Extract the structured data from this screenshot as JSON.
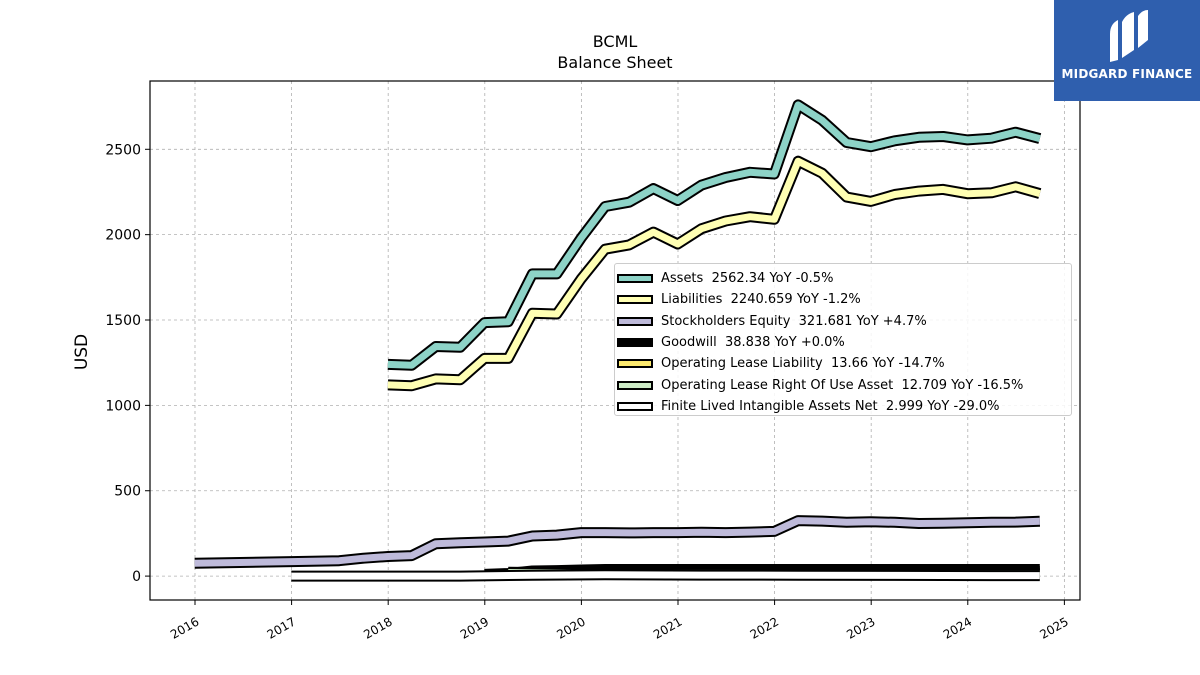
{
  "chart_data": {
    "type": "line",
    "title": "BCML",
    "subtitle": "Balance  Sheet",
    "xlabel": "",
    "ylabel": "USD",
    "x_tick_labels": [
      "2016",
      "2017",
      "2018",
      "2019",
      "2020",
      "2021",
      "2022",
      "2023",
      "2024",
      "2025"
    ],
    "y_tick_labels": [
      "0",
      "500",
      "1000",
      "1500",
      "2000",
      "2500"
    ],
    "xlim": [
      "2015-07-15",
      "2025-03-01"
    ],
    "ylim": [
      -140,
      2900
    ],
    "grid": true,
    "legend_position": "center-right",
    "series": [
      {
        "name": "Assets",
        "legend_label": "Assets  2562.34 YoY -0.5%",
        "color": "#8dd3c7",
        "points": [
          [
            "2017-12-31",
            1240
          ],
          [
            "2018-03-31",
            1235
          ],
          [
            "2018-06-30",
            1345
          ],
          [
            "2018-09-30",
            1340
          ],
          [
            "2018-12-31",
            1485
          ],
          [
            "2019-03-31",
            1490
          ],
          [
            "2019-06-30",
            1770
          ],
          [
            "2019-09-30",
            1770
          ],
          [
            "2019-12-31",
            1980
          ],
          [
            "2020-03-31",
            2165
          ],
          [
            "2020-06-30",
            2190
          ],
          [
            "2020-09-30",
            2270
          ],
          [
            "2020-12-31",
            2200
          ],
          [
            "2021-03-31",
            2290
          ],
          [
            "2021-06-30",
            2335
          ],
          [
            "2021-09-30",
            2365
          ],
          [
            "2021-12-31",
            2355
          ],
          [
            "2022-03-31",
            2760
          ],
          [
            "2022-06-30",
            2670
          ],
          [
            "2022-09-30",
            2540
          ],
          [
            "2022-12-31",
            2515
          ],
          [
            "2023-03-31",
            2550
          ],
          [
            "2023-06-30",
            2570
          ],
          [
            "2023-09-30",
            2575
          ],
          [
            "2023-12-31",
            2555
          ],
          [
            "2024-03-31",
            2565
          ],
          [
            "2024-06-30",
            2600
          ],
          [
            "2024-09-30",
            2562.34
          ]
        ]
      },
      {
        "name": "Liabilities",
        "legend_label": "Liabilities  2240.659 YoY -1.2%",
        "color": "#ffffb3",
        "points": [
          [
            "2017-12-31",
            1120
          ],
          [
            "2018-03-31",
            1115
          ],
          [
            "2018-06-30",
            1155
          ],
          [
            "2018-09-30",
            1150
          ],
          [
            "2018-12-31",
            1275
          ],
          [
            "2019-03-31",
            1275
          ],
          [
            "2019-06-30",
            1540
          ],
          [
            "2019-09-30",
            1535
          ],
          [
            "2019-12-31",
            1740
          ],
          [
            "2020-03-31",
            1915
          ],
          [
            "2020-06-30",
            1940
          ],
          [
            "2020-09-30",
            2015
          ],
          [
            "2020-12-31",
            1945
          ],
          [
            "2021-03-31",
            2035
          ],
          [
            "2021-06-30",
            2080
          ],
          [
            "2021-09-30",
            2105
          ],
          [
            "2021-12-31",
            2090
          ],
          [
            "2022-03-31",
            2430
          ],
          [
            "2022-06-30",
            2360
          ],
          [
            "2022-09-30",
            2220
          ],
          [
            "2022-12-31",
            2195
          ],
          [
            "2023-03-31",
            2235
          ],
          [
            "2023-06-30",
            2255
          ],
          [
            "2023-09-30",
            2265
          ],
          [
            "2023-12-31",
            2240
          ],
          [
            "2024-03-31",
            2245
          ],
          [
            "2024-06-30",
            2280
          ],
          [
            "2024-09-30",
            2240.659
          ]
        ]
      },
      {
        "name": "Stockholders Equity",
        "legend_label": "Stockholders Equity  321.681 YoY +4.7%",
        "color": "#bebada",
        "points": [
          [
            "2015-12-31",
            75
          ],
          [
            "2016-12-31",
            85
          ],
          [
            "2017-06-30",
            90
          ],
          [
            "2017-09-30",
            105
          ],
          [
            "2017-12-31",
            115
          ],
          [
            "2018-03-31",
            120
          ],
          [
            "2018-06-30",
            190
          ],
          [
            "2018-09-30",
            195
          ],
          [
            "2018-12-31",
            200
          ],
          [
            "2019-03-31",
            205
          ],
          [
            "2019-06-30",
            235
          ],
          [
            "2019-09-30",
            240
          ],
          [
            "2019-12-31",
            255
          ],
          [
            "2020-03-31",
            255
          ],
          [
            "2020-06-30",
            253
          ],
          [
            "2020-09-30",
            255
          ],
          [
            "2020-12-31",
            255
          ],
          [
            "2021-03-31",
            257
          ],
          [
            "2021-06-30",
            255
          ],
          [
            "2021-09-30",
            258
          ],
          [
            "2021-12-31",
            262
          ],
          [
            "2022-03-31",
            325
          ],
          [
            "2022-06-30",
            322
          ],
          [
            "2022-09-30",
            315
          ],
          [
            "2022-12-31",
            318
          ],
          [
            "2023-03-31",
            315
          ],
          [
            "2023-06-30",
            308
          ],
          [
            "2023-09-30",
            310
          ],
          [
            "2023-12-31",
            313
          ],
          [
            "2024-03-31",
            315
          ],
          [
            "2024-06-30",
            316
          ],
          [
            "2024-09-30",
            321.681
          ]
        ]
      },
      {
        "name": "Goodwill",
        "legend_label": "Goodwill  38.838 YoY +0.0%",
        "color": "#000000",
        "points": [
          [
            "2018-12-31",
            10
          ],
          [
            "2019-03-31",
            15
          ],
          [
            "2019-06-30",
            30
          ],
          [
            "2019-09-30",
            32
          ],
          [
            "2019-12-31",
            36
          ],
          [
            "2020-03-31",
            38.838
          ],
          [
            "2021-03-31",
            38.838
          ],
          [
            "2022-03-31",
            38.838
          ],
          [
            "2023-03-31",
            38.838
          ],
          [
            "2024-03-31",
            38.838
          ],
          [
            "2024-09-30",
            38.838
          ]
        ]
      },
      {
        "name": "Operating Lease Liability",
        "legend_label": "Operating Lease Liability  13.66 YoY -14.7%",
        "color": "#fdea6f",
        "points": [
          [
            "2019-03-31",
            22
          ],
          [
            "2019-09-30",
            20
          ],
          [
            "2020-03-31",
            18
          ],
          [
            "2021-03-31",
            17
          ],
          [
            "2022-03-31",
            16
          ],
          [
            "2023-03-31",
            15
          ],
          [
            "2024-03-31",
            14
          ],
          [
            "2024-09-30",
            13.66
          ]
        ]
      },
      {
        "name": "Operating Lease Right Of Use Asset",
        "legend_label": "Operating Lease Right Of Use Asset  12.709 YoY -16.5%",
        "color": "#ccebc5",
        "points": [
          [
            "2019-03-31",
            21
          ],
          [
            "2019-09-30",
            19
          ],
          [
            "2020-03-31",
            17
          ],
          [
            "2021-03-31",
            16
          ],
          [
            "2022-03-31",
            15
          ],
          [
            "2023-03-31",
            14
          ],
          [
            "2024-03-31",
            13
          ],
          [
            "2024-09-30",
            12.709
          ]
        ]
      },
      {
        "name": "Finite Lived Intangible Assets Net",
        "legend_label": "Finite Lived Intangible Assets Net  2.999 YoY -29.0%",
        "color": "#ffffff",
        "points": [
          [
            "2016-12-31",
            0
          ],
          [
            "2018-06-30",
            0
          ],
          [
            "2018-09-30",
            0
          ],
          [
            "2019-06-30",
            5
          ],
          [
            "2020-03-31",
            8
          ],
          [
            "2021-03-31",
            6
          ],
          [
            "2022-03-31",
            5
          ],
          [
            "2023-03-31",
            4
          ],
          [
            "2024-03-31",
            3
          ],
          [
            "2024-09-30",
            2.999
          ]
        ]
      }
    ]
  },
  "brand": {
    "name": "MIDGARD FINANCE",
    "background": "#2f5fae"
  }
}
